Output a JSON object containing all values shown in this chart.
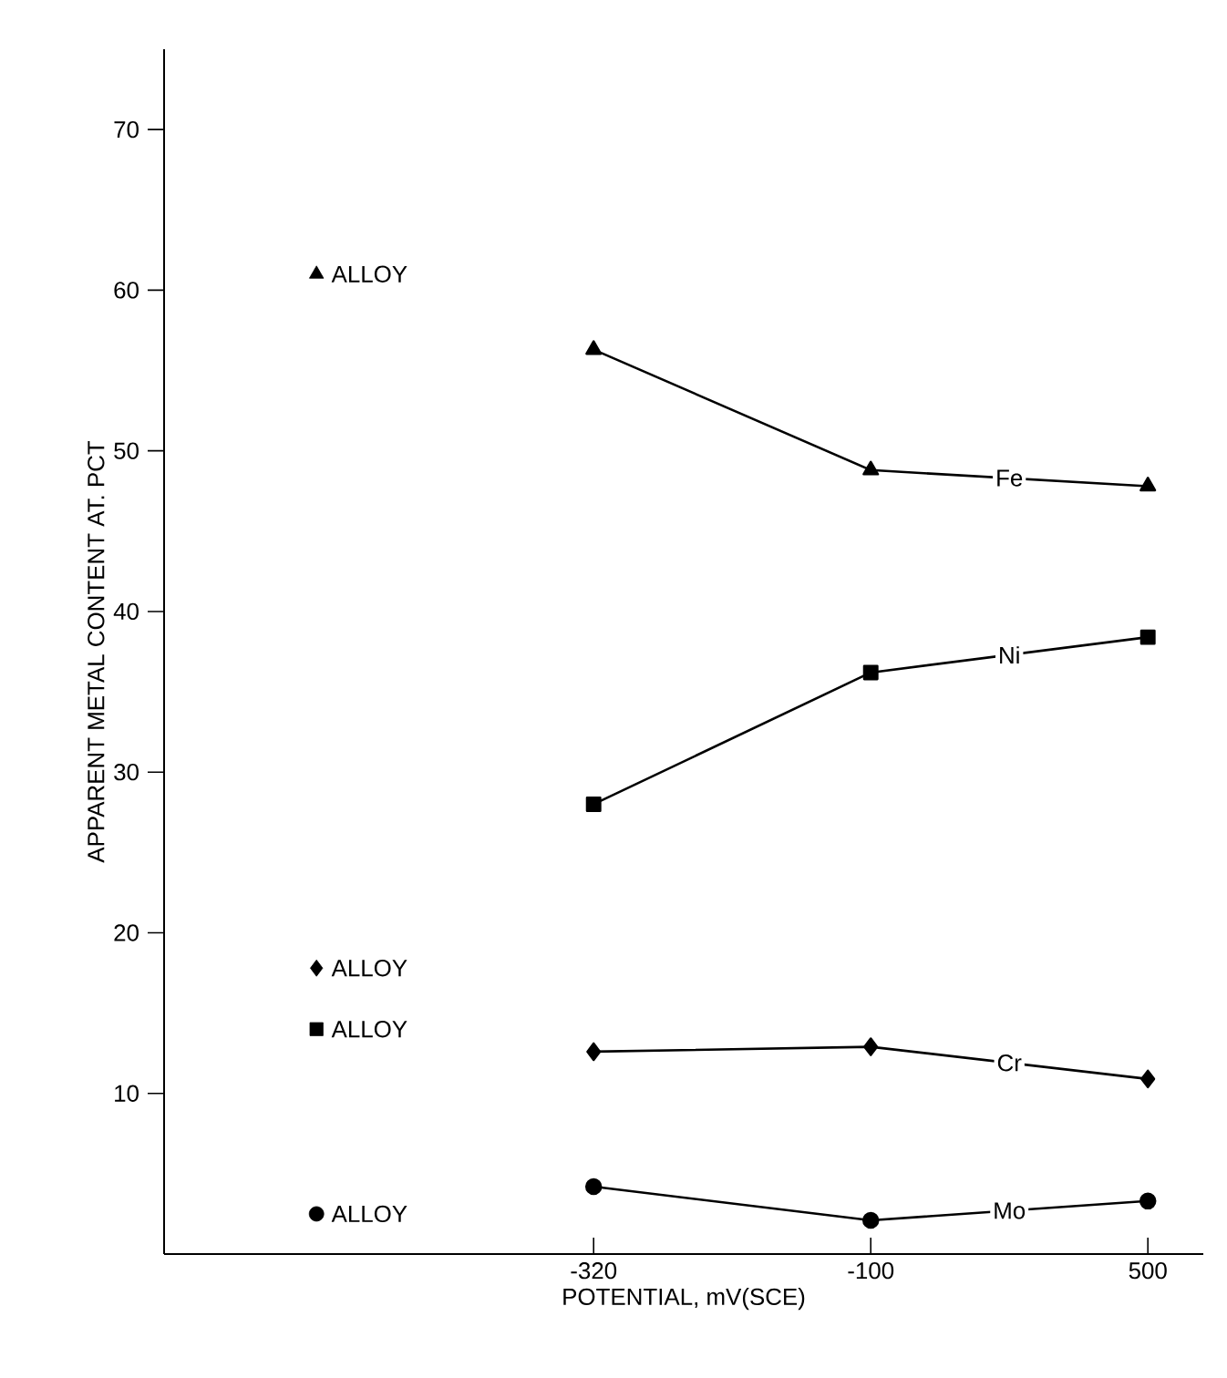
{
  "chart_data": {
    "type": "line",
    "xlabel": "POTENTIAL, mV(SCE)",
    "ylabel": "APPARENT METAL CONTENT AT. PCT",
    "categories": [
      null,
      "-320",
      "-100",
      "500"
    ],
    "ylim": [
      0,
      75
    ],
    "yticks": [
      10,
      20,
      30,
      40,
      50,
      60,
      70
    ],
    "grid": false,
    "legend": false,
    "series": [
      {
        "name": "Fe",
        "marker": "triangle",
        "color": "#000000",
        "values": [
          null,
          56.3,
          48.8,
          47.8
        ]
      },
      {
        "name": "Ni",
        "marker": "square",
        "color": "#000000",
        "values": [
          null,
          28.0,
          36.2,
          38.4
        ]
      },
      {
        "name": "Cr",
        "marker": "diamond",
        "color": "#000000",
        "values": [
          null,
          12.6,
          12.9,
          10.9
        ]
      },
      {
        "name": "Mo",
        "marker": "circle",
        "color": "#000000",
        "values": [
          null,
          4.2,
          2.1,
          3.3
        ]
      },
      {
        "name": "ALLOY",
        "type": "scatter",
        "marker": "triangle",
        "color": "#000000",
        "values": [
          61.0,
          null,
          null,
          null
        ]
      },
      {
        "name": "ALLOY",
        "type": "scatter",
        "marker": "diamond",
        "color": "#000000",
        "values": [
          17.8,
          null,
          null,
          null
        ]
      },
      {
        "name": "ALLOY",
        "type": "scatter",
        "marker": "square",
        "color": "#000000",
        "values": [
          14.0,
          null,
          null,
          null
        ]
      },
      {
        "name": "ALLOY",
        "type": "scatter",
        "marker": "circle",
        "color": "#000000",
        "values": [
          2.5,
          null,
          null,
          null
        ]
      }
    ]
  }
}
